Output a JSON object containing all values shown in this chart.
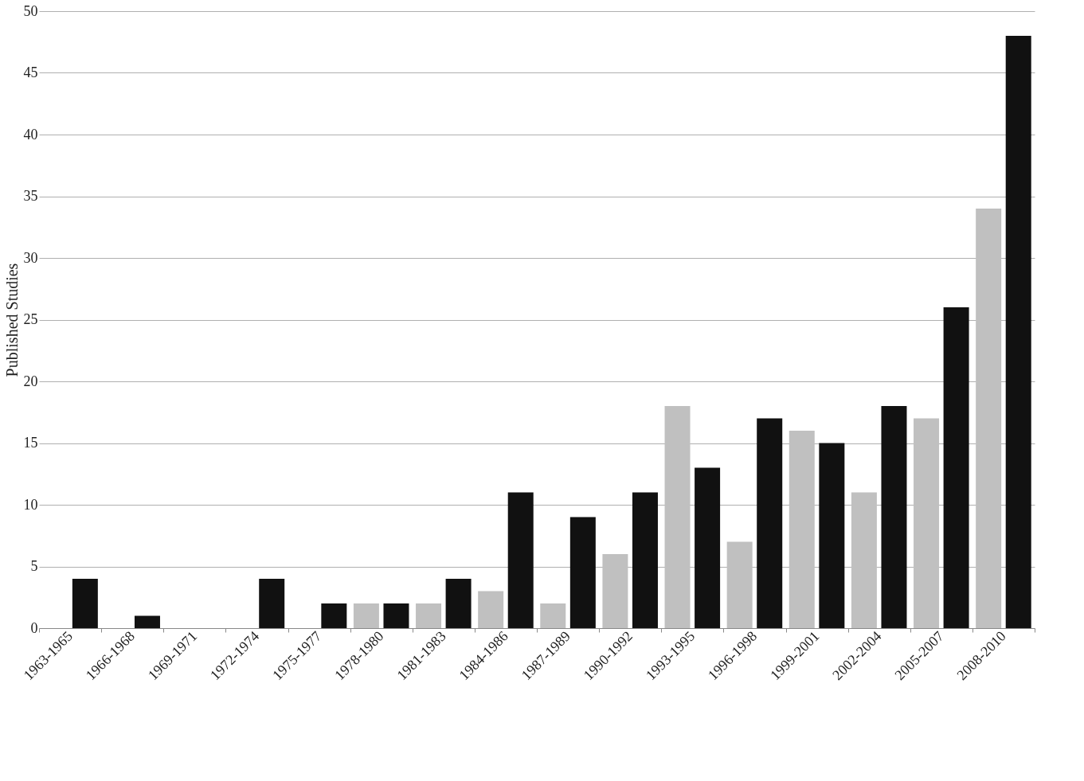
{
  "chart_data": {
    "type": "bar",
    "ylabel": "Published Studies",
    "categories": [
      "1963-1965",
      "1966-1968",
      "1969-1971",
      "1972-1974",
      "1975-1977",
      "1978-1980",
      "1981-1983",
      "1984-1986",
      "1987-1989",
      "1990-1992",
      "1993-1995",
      "1996-1998",
      "1999-2001",
      "2002-2004",
      "2005-2007",
      "2008-2010"
    ],
    "series": [
      {
        "color": "#c0c0c0",
        "values": [
          0,
          0,
          0,
          0,
          0,
          2,
          2,
          3,
          2,
          6,
          18,
          7,
          16,
          11,
          17,
          34
        ]
      },
      {
        "color": "#111111",
        "values": [
          4,
          1,
          0,
          4,
          2,
          2,
          4,
          11,
          9,
          11,
          13,
          17,
          15,
          18,
          26,
          48
        ]
      }
    ],
    "ylim": [
      0,
      50
    ],
    "yticks": [
      0,
      5,
      10,
      15,
      20,
      25,
      30,
      35,
      40,
      45,
      50
    ],
    "grid": "y"
  }
}
